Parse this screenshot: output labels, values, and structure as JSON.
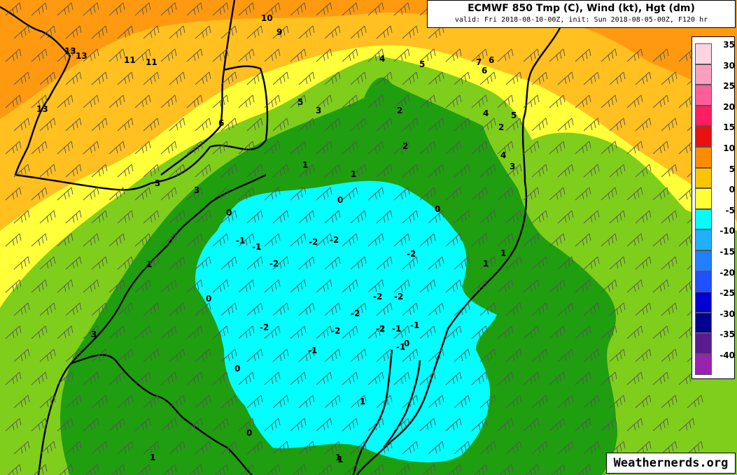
{
  "title": {
    "main": "ECMWF 850 Tmp (C), Wind (kt), Hgt (dm)",
    "sub": "valid: Fri 2018-08-10-00Z, init: Sun 2018-08-05-00Z, F120 hr"
  },
  "credit": "Weathernerds.org",
  "legend": [
    {
      "label": "35",
      "color": "#ffd4e0"
    },
    {
      "label": "30",
      "color": "#ff9fc0"
    },
    {
      "label": "25",
      "color": "#ff5e98"
    },
    {
      "label": "20",
      "color": "#ff1e60"
    },
    {
      "label": "15",
      "color": "#ff3a00"
    },
    {
      "label": "10",
      "color": "#ff8c00"
    },
    {
      "label": "5",
      "color": "#ffc400"
    },
    {
      "label": "0",
      "color": "#ffff33"
    },
    {
      "label": "",
      "color": "#7fce1c"
    },
    {
      "label": "-5",
      "color": "#1f9e10"
    },
    {
      "label": "-10",
      "color": "#00ffff"
    },
    {
      "label": "-15",
      "color": "#00aaff"
    },
    {
      "label": "-20",
      "color": "#0066ff"
    },
    {
      "label": "-25",
      "color": "#0000d0"
    },
    {
      "label": "-30",
      "color": "#000090"
    },
    {
      "label": "-35",
      "color": "#5a1a90"
    },
    {
      "label": "-40",
      "color": "#9a22b0"
    },
    {
      "label": "",
      "color": "#d840c8"
    },
    {
      "label": "",
      "color": "#ff80c0"
    },
    {
      "label": "",
      "color": "#ffb0c8"
    },
    {
      "label": "",
      "color": "#ffd4dc"
    },
    {
      "label": "",
      "color": "#fff0f0"
    }
  ],
  "legend_labels": [
    "35",
    "30",
    "25",
    "20",
    "15",
    "10",
    "5",
    "0",
    "-5",
    "-10",
    "-15",
    "-20",
    "-25",
    "-30",
    "-35",
    "-40"
  ],
  "contour_labels": [
    "10",
    "9",
    "13",
    "13",
    "11",
    "11",
    "13",
    "6",
    "7",
    "6",
    "5",
    "4",
    "5",
    "4",
    "3",
    "2",
    "5",
    "6",
    "4",
    "3",
    "1",
    "1",
    "3",
    "3",
    "2",
    "2",
    "0",
    "0",
    "0",
    "0",
    "-1",
    "-1",
    "-2",
    "-2",
    "-2",
    "-2",
    "-2",
    "1",
    "1",
    "-2",
    "-2",
    "-2",
    "-2",
    "-1",
    "-2",
    "-1",
    "-1",
    "-1",
    "0",
    "0",
    "0",
    "1",
    "1",
    "1",
    "1",
    "3",
    "1"
  ],
  "colors": {
    "orange": "#ff9a10",
    "light_orange": "#ffc020",
    "yellow": "#ffff3a",
    "light_green": "#7fce1c",
    "green": "#1f9e10",
    "cyan": "#00ffff"
  }
}
